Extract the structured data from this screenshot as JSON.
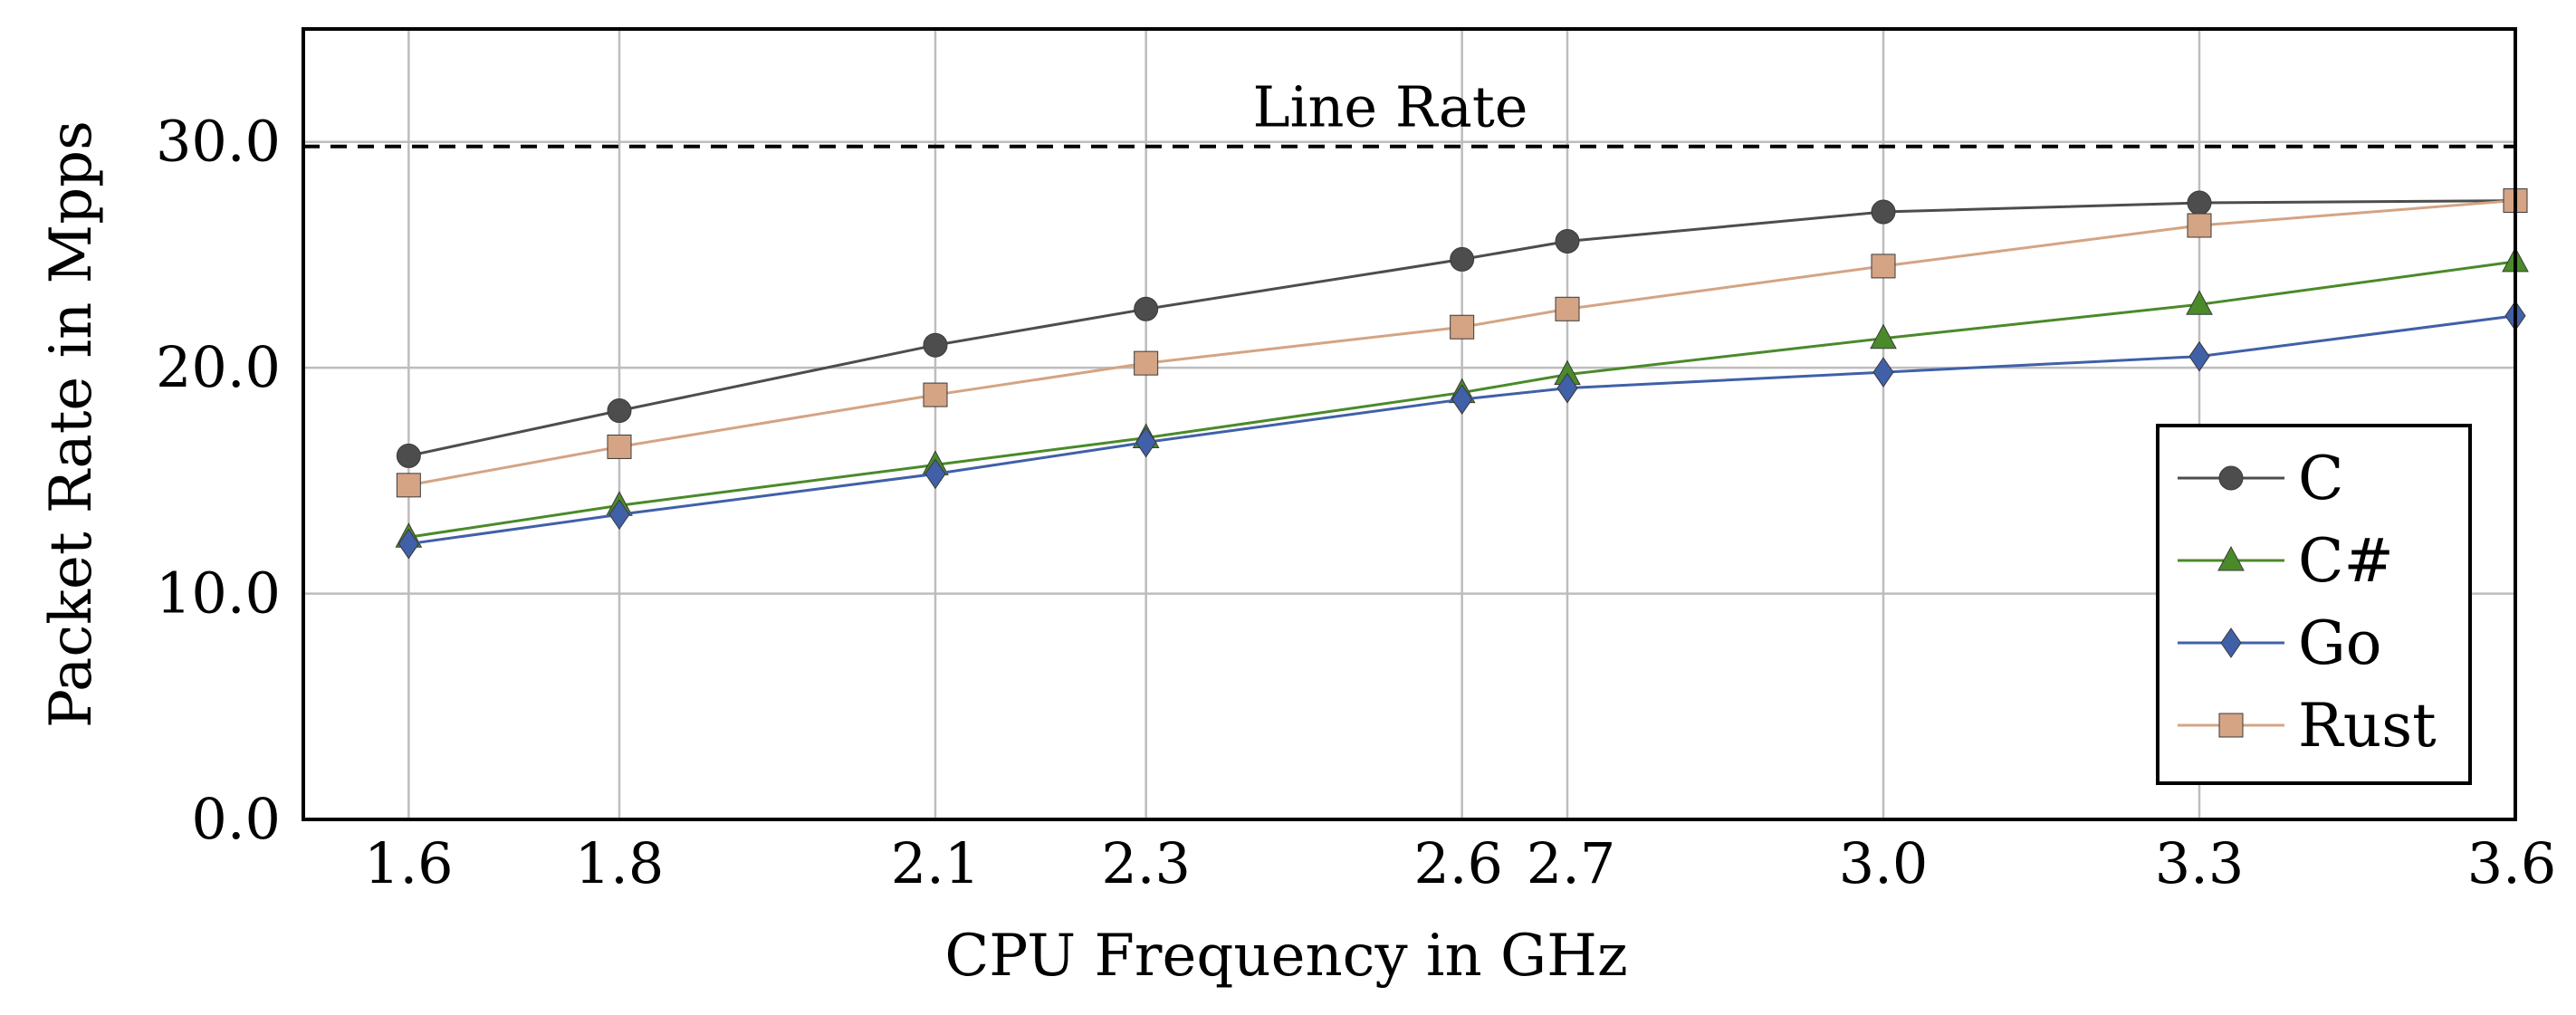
{
  "chart_data": {
    "type": "line",
    "title": "",
    "xlabel": "CPU Frequency in GHz",
    "ylabel": "Packet Rate in Mpps",
    "x": [
      1.6,
      1.8,
      2.1,
      2.3,
      2.6,
      2.7,
      3.0,
      3.3,
      3.6
    ],
    "x_tick_labels": [
      "1.6",
      "1.8",
      "2.1",
      "2.3",
      "2.6",
      "2.7",
      "3.0",
      "3.3",
      "3.6"
    ],
    "y_ticks": [
      0,
      10,
      20,
      30
    ],
    "y_tick_labels": [
      "0.0",
      "10.0",
      "20.0",
      "30.0"
    ],
    "xlim": [
      1.5,
      3.6
    ],
    "ylim": [
      0,
      35
    ],
    "grid": true,
    "legend_position": "bottom-right",
    "reference_line": {
      "label": "Line Rate",
      "y": 29.8,
      "style": "dashed",
      "color": "#000000"
    },
    "series": [
      {
        "name": "C",
        "marker": "circle",
        "color": "#4d4d4d",
        "values": [
          16.1,
          18.1,
          21.0,
          22.6,
          24.8,
          25.6,
          26.9,
          27.3,
          27.4
        ]
      },
      {
        "name": "C#",
        "marker": "triangle",
        "color": "#4a8a2a",
        "values": [
          12.5,
          13.9,
          15.7,
          16.9,
          18.9,
          19.7,
          21.3,
          22.8,
          24.7
        ]
      },
      {
        "name": "Go",
        "marker": "diamond",
        "color": "#4060a8",
        "values": [
          12.2,
          13.5,
          15.3,
          16.7,
          18.6,
          19.1,
          19.8,
          20.5,
          22.3
        ]
      },
      {
        "name": "Rust",
        "marker": "square",
        "color": "#d4a484",
        "values": [
          14.8,
          16.5,
          18.8,
          20.2,
          21.8,
          22.6,
          24.5,
          26.3,
          27.4
        ]
      }
    ]
  }
}
